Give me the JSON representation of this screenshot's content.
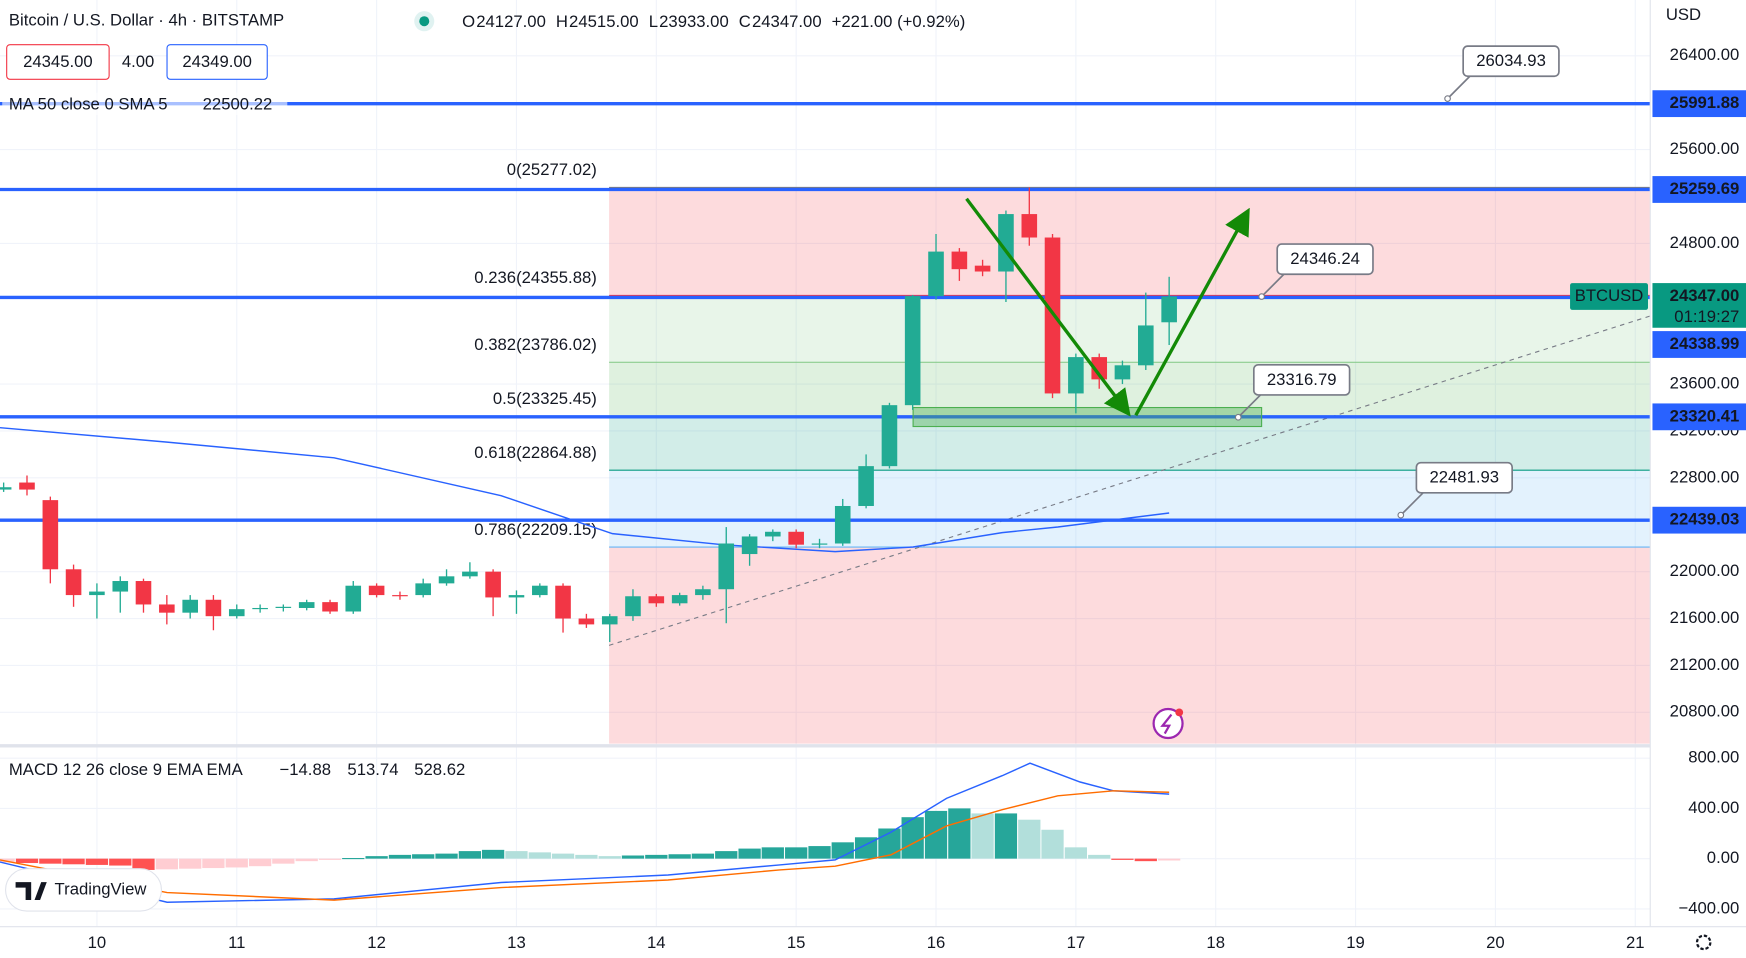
{
  "header": {
    "title": "Bitcoin / U.S. Dollar · 4h · BITSTAMP",
    "ohlc": [
      {
        "key": "O",
        "value": "24127.00"
      },
      {
        "key": "H",
        "value": "24515.00"
      },
      {
        "key": "L",
        "value": "23933.00"
      },
      {
        "key": "C",
        "value": "24347.00"
      }
    ],
    "change": "+221.00 (+0.92%)",
    "sell": "24345.00",
    "spread": "4.00",
    "buy": "24349.00",
    "currency": "USD",
    "symbol": "BTCUSD",
    "countdown": "01:19:27",
    "logo": "TradingView"
  },
  "chart_data": [
    {
      "type": "candlestick",
      "x": [
        9.333,
        9.5,
        9.667,
        9.833,
        10.0,
        10.167,
        10.333,
        10.5,
        10.667,
        10.833,
        11.0,
        11.167,
        11.333,
        11.5,
        11.667,
        11.833,
        12.0,
        12.167,
        12.333,
        12.5,
        12.667,
        12.833,
        13.0,
        13.167,
        13.333,
        13.5,
        13.667,
        13.833,
        14.0,
        14.167,
        14.333,
        14.5,
        14.667,
        14.833,
        15.0,
        15.167,
        15.333,
        15.5,
        15.667,
        15.833,
        16.0,
        16.167,
        16.333,
        16.5,
        16.667,
        16.833,
        17.0,
        17.167,
        17.333,
        17.5,
        17.667
      ],
      "open": [
        22700,
        22760,
        22610,
        22020,
        21800,
        21830,
        21920,
        21720,
        21650,
        21760,
        21620,
        21680,
        21690,
        21690,
        21740,
        21660,
        21880,
        21800,
        21800,
        21900,
        21960,
        22000,
        21780,
        21800,
        21880,
        21600,
        21550,
        21620,
        21790,
        21730,
        21800,
        21850,
        22150,
        22300,
        22340,
        22230,
        22240,
        22560,
        22900,
        23420,
        24350,
        24730,
        24610,
        24560,
        25050,
        24850,
        23520,
        23830,
        23640,
        23760,
        24127
      ],
      "high": [
        22760,
        22820,
        22640,
        22060,
        21900,
        21960,
        21940,
        21800,
        21800,
        21800,
        21720,
        21720,
        21720,
        21760,
        21760,
        21920,
        21900,
        21830,
        21940,
        22020,
        22080,
        22020,
        21840,
        21900,
        21900,
        21640,
        21640,
        21850,
        21810,
        21820,
        21880,
        22380,
        22320,
        22360,
        22360,
        22280,
        22620,
        23000,
        23440,
        24360,
        24880,
        24760,
        24660,
        25080,
        25277,
        24880,
        23860,
        23860,
        23800,
        24380,
        24515
      ],
      "low": [
        22680,
        22650,
        21900,
        21700,
        21600,
        21650,
        21650,
        21550,
        21600,
        21500,
        21600,
        21650,
        21660,
        21670,
        21640,
        21640,
        21780,
        21760,
        21780,
        21880,
        21940,
        21620,
        21640,
        21780,
        21480,
        21520,
        21400,
        21580,
        21700,
        21710,
        21760,
        21560,
        22050,
        22260,
        22200,
        22200,
        22220,
        22540,
        22880,
        23380,
        24320,
        24480,
        24520,
        24300,
        24780,
        23480,
        23350,
        23560,
        23600,
        23720,
        23933
      ],
      "close": [
        22720,
        22700,
        22020,
        21800,
        21830,
        21920,
        21720,
        21650,
        21760,
        21620,
        21680,
        21690,
        21700,
        21740,
        21660,
        21880,
        21800,
        21790,
        21900,
        21960,
        22000,
        21780,
        21800,
        21880,
        21600,
        21550,
        21620,
        21790,
        21730,
        21800,
        21850,
        22240,
        22300,
        22340,
        22230,
        22240,
        22560,
        22900,
        23420,
        24350,
        24730,
        24580,
        24560,
        25050,
        24850,
        23520,
        23830,
        23640,
        23760,
        24100,
        24347
      ],
      "up_color": "#22ab94",
      "down_color": "#f23645",
      "last_label": "24347.00",
      "xlim": [
        9.307,
        21.107
      ],
      "xticks": [
        10,
        11,
        12,
        13,
        14,
        15,
        16,
        17,
        18,
        19,
        20,
        21
      ],
      "ylim": [
        20533,
        26876
      ],
      "yticks": [
        {
          "value": 26400,
          "label": "26400.00"
        },
        {
          "value": 25600,
          "label": "25600.00"
        },
        {
          "value": 24800,
          "label": "24800.00"
        },
        {
          "value": 23600,
          "label": "23600.00"
        },
        {
          "value": 23200,
          "label": "23200.00"
        },
        {
          "value": 22800,
          "label": "22800.00"
        },
        {
          "value": 22000,
          "label": "22000.00"
        },
        {
          "value": 21600,
          "label": "21600.00"
        },
        {
          "value": 21200,
          "label": "21200.00"
        },
        {
          "value": 20800,
          "label": "20800.00"
        }
      ],
      "grid": true,
      "ma": {
        "label": "MA 50 close 0 SMA 5",
        "value_label": "22500.22",
        "color": "#2962ff",
        "x": [
          9.307,
          10.502,
          11.696,
          12.89,
          13.686,
          14.482,
          15.279,
          15.836,
          16.473,
          16.871,
          17.667
        ],
        "values": [
          23228,
          23105,
          22971,
          22648,
          22324,
          22229,
          22171,
          22210,
          22333,
          22381,
          22500.22
        ]
      },
      "hlines": [
        {
          "value": 25991.88,
          "label": "25991.88"
        },
        {
          "value": 25259.69,
          "label": "25259.69"
        },
        {
          "value": 24338.99,
          "label": "24338.99"
        },
        {
          "value": 23320.41,
          "label": "23320.41"
        },
        {
          "value": 22439.03,
          "label": "22439.03"
        }
      ],
      "line_color": "#2962ff",
      "callouts": [
        {
          "value": 26034.93,
          "label": "26034.93"
        },
        {
          "value": 24346.24,
          "label": "24346.24"
        },
        {
          "value": 23316.79,
          "label": "23316.79"
        },
        {
          "value": 22481.93,
          "label": "22481.93"
        }
      ],
      "fib": {
        "levels": [
          {
            "value": 25277.02,
            "label": "0(25277.02)",
            "color": "#787b86"
          },
          {
            "value": 24355.88,
            "label": "0.236(24355.88)",
            "color": "#f23645"
          },
          {
            "value": 23786.02,
            "label": "0.382(23786.02)",
            "color": "#81c784"
          },
          {
            "value": 23325.45,
            "label": "0.5(23325.45)",
            "color": "#4caf50"
          },
          {
            "value": 22864.88,
            "label": "0.618(22864.88)",
            "color": "#089981"
          },
          {
            "value": 22209.15,
            "label": "0.786(22209.15)",
            "color": "#64b5f6"
          }
        ],
        "tail_color": "#f23645"
      }
    },
    {
      "type": "macd",
      "title": "MACD 12 26 close 9 EMA EMA",
      "histogram": {
        "values": [
          -30,
          -35,
          -40,
          -45,
          -50,
          -55,
          -90,
          -85,
          -80,
          -75,
          -70,
          -60,
          -40,
          -20,
          -10,
          5,
          20,
          30,
          35,
          40,
          60,
          70,
          60,
          50,
          40,
          30,
          20,
          25,
          30,
          35,
          40,
          60,
          80,
          90,
          90,
          100,
          130,
          170,
          240,
          330,
          380,
          400,
          360,
          360,
          310,
          230,
          90,
          30,
          -10,
          -20,
          -14.88
        ],
        "value_label": "−14.88",
        "colors": {
          "up_pos": "#26a69a",
          "down_pos": "#b2dfdb",
          "up_neg": "#ffcdd2",
          "down_neg": "#ff5252"
        }
      },
      "macd": {
        "color": "#2962ff",
        "value_label": "513.74",
        "x": [
          9.307,
          10.502,
          11.696,
          12.89,
          14.084,
          14.881,
          15.279,
          15.677,
          16.075,
          16.473,
          16.672,
          17.03,
          17.269,
          17.667
        ],
        "values": [
          -27,
          -347,
          -320,
          -190,
          -130,
          -50,
          -10,
          210,
          480,
          660,
          760,
          610,
          540,
          513.74
        ]
      },
      "signal": {
        "color": "#ff6d00",
        "value_label": "528.62",
        "x": [
          9.307,
          10.502,
          11.696,
          12.89,
          14.084,
          14.881,
          15.279,
          15.677,
          16.075,
          16.473,
          16.871,
          17.269,
          17.667
        ],
        "values": [
          -10,
          -270,
          -330,
          -230,
          -170,
          -90,
          -60,
          30,
          260,
          390,
          500,
          540,
          528.62
        ]
      },
      "ylim": [
        -542,
        880
      ],
      "yticks": [
        {
          "value": 800,
          "label": "800.00"
        },
        {
          "value": 400,
          "label": "400.00"
        },
        {
          "value": 0,
          "label": "0.00"
        },
        {
          "value": -400,
          "label": "−400.00"
        }
      ]
    }
  ]
}
